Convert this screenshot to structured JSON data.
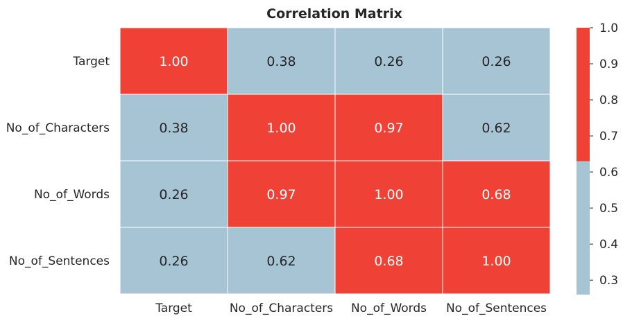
{
  "chart_data": {
    "type": "heatmap",
    "title": "Correlation Matrix",
    "x_labels": [
      "Target",
      "No_of_Characters",
      "No_of_Words",
      "No_of_Sentences"
    ],
    "y_labels": [
      "Target",
      "No_of_Characters",
      "No_of_Words",
      "No_of_Sentences"
    ],
    "values": [
      [
        1.0,
        0.38,
        0.26,
        0.26
      ],
      [
        0.38,
        1.0,
        0.97,
        0.62
      ],
      [
        0.26,
        0.97,
        1.0,
        0.68
      ],
      [
        0.26,
        0.62,
        0.68,
        1.0
      ]
    ],
    "value_format": "2dp",
    "colorbar": {
      "min": 0.26,
      "max": 1.0,
      "threshold": 0.63,
      "low_color": "#a7c4d4",
      "high_color": "#ef4136",
      "ticks": [
        "0.3",
        "0.4",
        "0.5",
        "0.6",
        "0.7",
        "0.8",
        "0.9",
        "1.0"
      ]
    },
    "grid": false,
    "cell_border_color": "#ffffff",
    "text_on_high_color": "#ffffff",
    "text_on_low_color": "#262626"
  }
}
